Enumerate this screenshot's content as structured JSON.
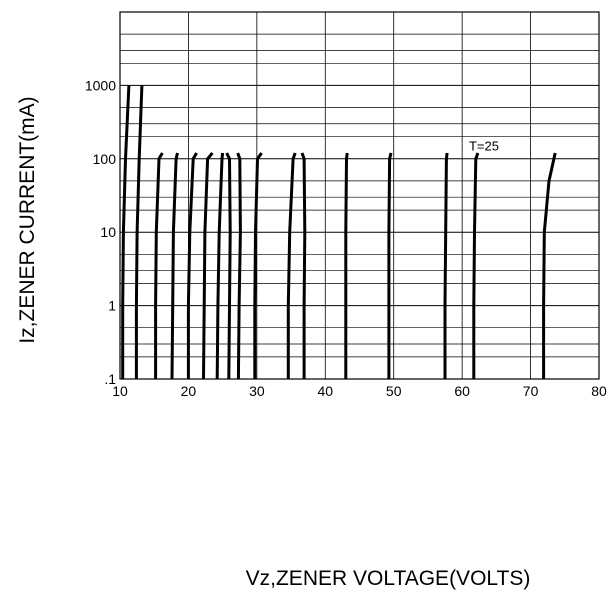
{
  "chart_data": {
    "type": "line",
    "title": "",
    "xlabel": "Vz,ZENER VOLTAGE(VOLTS)",
    "ylabel": "Iz,ZENER CURRENT(mA)",
    "xscale": "linear",
    "yscale": "log",
    "xlim": [
      10,
      80
    ],
    "ylim": [
      0.1,
      10000
    ],
    "grid": true,
    "legend": "none",
    "x_ticks": [
      10,
      20,
      30,
      40,
      50,
      60,
      70,
      80
    ],
    "x_tick_labels": [
      "10",
      "20",
      "30",
      "40",
      "50",
      "60",
      "70",
      "80"
    ],
    "y_ticks": [
      0.1,
      1,
      10,
      100,
      1000
    ],
    "y_tick_labels": [
      ".1",
      "1",
      "10",
      "100",
      "1000"
    ],
    "annotations": [
      {
        "text": "T=25",
        "x": 61,
        "y": 130
      }
    ],
    "line_color": "#000000",
    "series": [
      {
        "points": [
          [
            10.4,
            0.1
          ],
          [
            10.4,
            1
          ],
          [
            10.5,
            10
          ],
          [
            10.8,
            100
          ],
          [
            11.3,
            1000
          ]
        ]
      },
      {
        "points": [
          [
            12.4,
            0.1
          ],
          [
            12.4,
            1
          ],
          [
            12.5,
            10
          ],
          [
            12.8,
            100
          ],
          [
            13.2,
            1000
          ]
        ]
      },
      {
        "points": [
          [
            15.2,
            0.1
          ],
          [
            15.2,
            1
          ],
          [
            15.3,
            10
          ],
          [
            15.7,
            100
          ],
          [
            16.2,
            120
          ]
        ]
      },
      {
        "points": [
          [
            17.6,
            0.1
          ],
          [
            17.7,
            1
          ],
          [
            17.8,
            10
          ],
          [
            18.2,
            100
          ],
          [
            18.4,
            120
          ]
        ]
      },
      {
        "points": [
          [
            20.0,
            0.1
          ],
          [
            20.0,
            1
          ],
          [
            20.2,
            10
          ],
          [
            20.7,
            100
          ],
          [
            21.2,
            120
          ]
        ]
      },
      {
        "points": [
          [
            22.2,
            0.1
          ],
          [
            22.3,
            1
          ],
          [
            22.4,
            10
          ],
          [
            22.8,
            100
          ],
          [
            23.5,
            120
          ]
        ]
      },
      {
        "points": [
          [
            24.2,
            0.1
          ],
          [
            24.3,
            1
          ],
          [
            24.5,
            10
          ],
          [
            24.9,
            100
          ],
          [
            25.0,
            120
          ]
        ]
      },
      {
        "points": [
          [
            25.9,
            0.1
          ],
          [
            26.0,
            1
          ],
          [
            26.1,
            10
          ],
          [
            26.0,
            100
          ],
          [
            25.6,
            120
          ]
        ]
      },
      {
        "points": [
          [
            27.3,
            0.1
          ],
          [
            27.4,
            1
          ],
          [
            27.6,
            10
          ],
          [
            27.5,
            100
          ],
          [
            27.2,
            120
          ]
        ]
      },
      {
        "points": [
          [
            29.7,
            0.1
          ],
          [
            29.7,
            1
          ],
          [
            29.8,
            10
          ],
          [
            30.1,
            100
          ],
          [
            30.7,
            120
          ]
        ]
      },
      {
        "points": [
          [
            34.6,
            0.1
          ],
          [
            34.6,
            1
          ],
          [
            34.8,
            10
          ],
          [
            35.3,
            100
          ],
          [
            35.6,
            120
          ]
        ]
      },
      {
        "points": [
          [
            36.9,
            0.1
          ],
          [
            36.9,
            1
          ],
          [
            37.0,
            10
          ],
          [
            36.9,
            100
          ],
          [
            36.6,
            120
          ]
        ]
      },
      {
        "points": [
          [
            43.0,
            0.1
          ],
          [
            43.0,
            1
          ],
          [
            43.0,
            10
          ],
          [
            43.1,
            100
          ],
          [
            43.2,
            120
          ]
        ]
      },
      {
        "points": [
          [
            49.3,
            0.1
          ],
          [
            49.3,
            1
          ],
          [
            49.3,
            10
          ],
          [
            49.4,
            100
          ],
          [
            49.6,
            120
          ]
        ]
      },
      {
        "points": [
          [
            57.5,
            0.1
          ],
          [
            57.5,
            1
          ],
          [
            57.6,
            10
          ],
          [
            57.7,
            100
          ],
          [
            57.8,
            120
          ]
        ]
      },
      {
        "points": [
          [
            61.7,
            0.1
          ],
          [
            61.7,
            1
          ],
          [
            61.8,
            10
          ],
          [
            62.0,
            100
          ],
          [
            62.3,
            120
          ]
        ]
      },
      {
        "points": [
          [
            71.9,
            0.1
          ],
          [
            71.9,
            1
          ],
          [
            72.0,
            10
          ],
          [
            72.7,
            50
          ],
          [
            73.6,
            120
          ]
        ]
      }
    ]
  }
}
